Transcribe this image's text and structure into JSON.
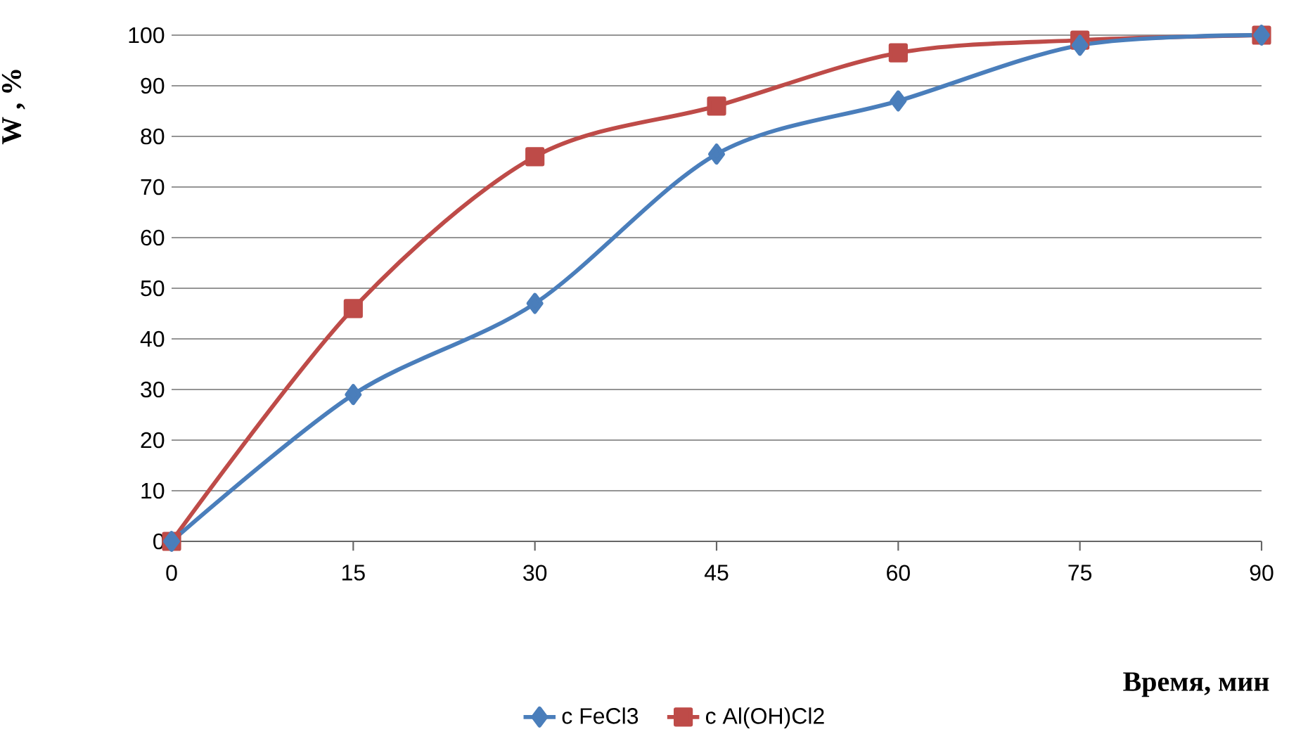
{
  "chart_data": {
    "type": "line",
    "xlabel": "Время, мин",
    "ylabel": "W , %",
    "x": [
      0,
      15,
      30,
      45,
      60,
      75,
      90
    ],
    "series": [
      {
        "name": "с FeCl3",
        "color": "#4a7ebb",
        "marker": "diamond",
        "values": [
          0,
          29,
          47,
          76.5,
          87,
          98,
          100
        ]
      },
      {
        "name": "с Al(OH)Cl2",
        "color": "#be4b48",
        "marker": "square",
        "values": [
          0,
          46,
          76,
          86,
          96.5,
          99,
          100
        ]
      }
    ],
    "xlim": [
      0,
      90
    ],
    "xticks": [
      0,
      15,
      30,
      45,
      60,
      75,
      90
    ],
    "ylim": [
      0,
      100
    ],
    "yticks": [
      0,
      10,
      20,
      30,
      40,
      50,
      60,
      70,
      80,
      90,
      100
    ],
    "grid": "y",
    "legend": "bottom",
    "line_style": "solid"
  }
}
